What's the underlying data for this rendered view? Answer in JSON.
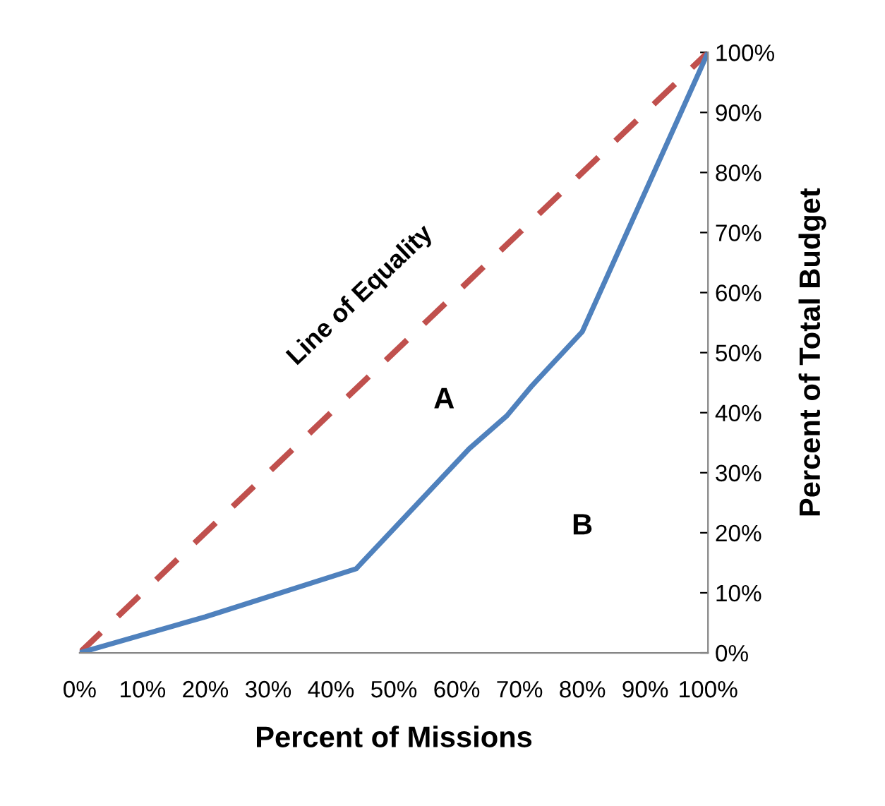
{
  "chart_data": {
    "type": "line",
    "xlabel": "Percent of Missions",
    "ylabel": "Percent of Total Budget",
    "xlim": [
      0,
      100
    ],
    "ylim": [
      0,
      100
    ],
    "xticks": [
      {
        "value": 0,
        "label": "0%"
      },
      {
        "value": 10,
        "label": "10%"
      },
      {
        "value": 20,
        "label": "20%"
      },
      {
        "value": 30,
        "label": "30%"
      },
      {
        "value": 40,
        "label": "40%"
      },
      {
        "value": 50,
        "label": "50%"
      },
      {
        "value": 60,
        "label": "60%"
      },
      {
        "value": 70,
        "label": "70%"
      },
      {
        "value": 80,
        "label": "80%"
      },
      {
        "value": 90,
        "label": "90%"
      },
      {
        "value": 100,
        "label": "100%"
      }
    ],
    "yticks": [
      {
        "value": 0,
        "label": "0%"
      },
      {
        "value": 10,
        "label": "10%"
      },
      {
        "value": 20,
        "label": "20%"
      },
      {
        "value": 30,
        "label": "30%"
      },
      {
        "value": 40,
        "label": "40%"
      },
      {
        "value": 50,
        "label": "50%"
      },
      {
        "value": 60,
        "label": "60%"
      },
      {
        "value": 70,
        "label": "70%"
      },
      {
        "value": 80,
        "label": "80%"
      },
      {
        "value": 90,
        "label": "90%"
      },
      {
        "value": 100,
        "label": "100%"
      }
    ],
    "series": [
      {
        "name": "Line of Equality",
        "color": "#c0504d",
        "line_style": "dashed",
        "x": [
          0,
          100
        ],
        "values": [
          0,
          100
        ]
      },
      {
        "color": "#4f81bd",
        "line_style": "solid",
        "x": [
          0,
          20,
          44,
          62,
          68,
          72,
          76,
          80,
          100
        ],
        "values": [
          0,
          6,
          14,
          34,
          39.5,
          44.5,
          49,
          53.5,
          100
        ]
      }
    ],
    "annotations": [
      "A",
      "B"
    ],
    "grid": false,
    "legend": false,
    "marker": "none"
  }
}
